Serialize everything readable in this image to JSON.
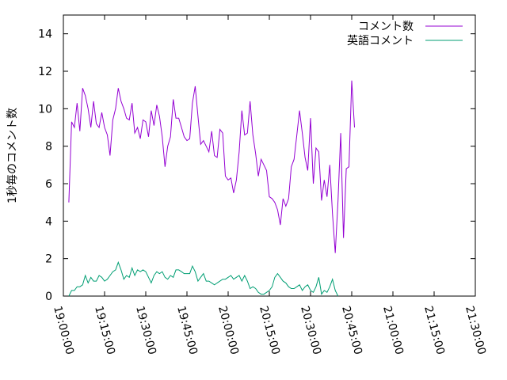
{
  "chart_data": {
    "type": "line",
    "title": "",
    "xlabel": "",
    "ylabel": "1秒毎のコメント数",
    "ylim": [
      0,
      15
    ],
    "yticks": [
      0,
      2,
      4,
      6,
      8,
      10,
      12,
      14
    ],
    "xlim": [
      "19:00:00",
      "21:30:00"
    ],
    "xticks": [
      "19:00:00",
      "19:15:00",
      "19:30:00",
      "19:45:00",
      "20:00:00",
      "20:15:00",
      "20:30:00",
      "20:45:00",
      "21:00:00",
      "21:15:00",
      "21:30:00"
    ],
    "grid": false,
    "legend_position": "top-right",
    "series": [
      {
        "name": "コメント数",
        "color": "#9400d3",
        "points": [
          [
            "19:02:00",
            5.0
          ],
          [
            "19:03:00",
            9.3
          ],
          [
            "19:04:00",
            9.0
          ],
          [
            "19:05:00",
            10.3
          ],
          [
            "19:06:00",
            8.8
          ],
          [
            "19:07:00",
            11.1
          ],
          [
            "19:08:00",
            10.7
          ],
          [
            "19:09:00",
            10.0
          ],
          [
            "19:10:00",
            9.0
          ],
          [
            "19:11:00",
            10.4
          ],
          [
            "19:12:00",
            9.2
          ],
          [
            "19:13:00",
            9.0
          ],
          [
            "19:14:00",
            9.8
          ],
          [
            "19:15:00",
            9.0
          ],
          [
            "19:16:00",
            8.6
          ],
          [
            "19:17:00",
            7.5
          ],
          [
            "19:18:00",
            9.4
          ],
          [
            "19:19:00",
            10.0
          ],
          [
            "19:20:00",
            11.1
          ],
          [
            "19:21:00",
            10.4
          ],
          [
            "19:22:00",
            10.0
          ],
          [
            "19:23:00",
            9.5
          ],
          [
            "19:24:00",
            9.4
          ],
          [
            "19:25:00",
            10.3
          ],
          [
            "19:26:00",
            8.7
          ],
          [
            "19:27:00",
            9.0
          ],
          [
            "19:28:00",
            8.4
          ],
          [
            "19:29:00",
            9.4
          ],
          [
            "19:30:00",
            9.3
          ],
          [
            "19:31:00",
            8.5
          ],
          [
            "19:32:00",
            9.9
          ],
          [
            "19:33:00",
            9.1
          ],
          [
            "19:34:00",
            10.2
          ],
          [
            "19:35:00",
            9.6
          ],
          [
            "19:36:00",
            8.5
          ],
          [
            "19:37:00",
            6.9
          ],
          [
            "19:38:00",
            8.0
          ],
          [
            "19:39:00",
            8.5
          ],
          [
            "19:40:00",
            10.5
          ],
          [
            "19:41:00",
            9.5
          ],
          [
            "19:42:00",
            9.5
          ],
          [
            "19:43:00",
            9.0
          ],
          [
            "19:44:00",
            8.5
          ],
          [
            "19:45:00",
            8.3
          ],
          [
            "19:46:00",
            8.4
          ],
          [
            "19:47:00",
            10.3
          ],
          [
            "19:48:00",
            11.2
          ],
          [
            "19:49:00",
            9.6
          ],
          [
            "19:50:00",
            8.1
          ],
          [
            "19:51:00",
            8.3
          ],
          [
            "19:52:00",
            8.0
          ],
          [
            "19:53:00",
            7.7
          ],
          [
            "19:54:00",
            8.8
          ],
          [
            "19:55:00",
            7.5
          ],
          [
            "19:56:00",
            7.4
          ],
          [
            "19:57:00",
            8.9
          ],
          [
            "19:58:00",
            8.7
          ],
          [
            "19:59:00",
            6.4
          ],
          [
            "20:00:00",
            6.2
          ],
          [
            "20:01:00",
            6.3
          ],
          [
            "20:02:00",
            5.5
          ],
          [
            "20:03:00",
            6.2
          ],
          [
            "20:04:00",
            7.7
          ],
          [
            "20:05:00",
            9.9
          ],
          [
            "20:06:00",
            8.6
          ],
          [
            "20:07:00",
            8.7
          ],
          [
            "20:08:00",
            10.4
          ],
          [
            "20:09:00",
            8.6
          ],
          [
            "20:10:00",
            7.6
          ],
          [
            "20:11:00",
            6.4
          ],
          [
            "20:12:00",
            7.3
          ],
          [
            "20:13:00",
            7.0
          ],
          [
            "20:14:00",
            6.7
          ],
          [
            "20:15:00",
            5.3
          ],
          [
            "20:16:00",
            5.2
          ],
          [
            "20:17:00",
            5.0
          ],
          [
            "20:18:00",
            4.6
          ],
          [
            "20:19:00",
            3.8
          ],
          [
            "20:20:00",
            5.2
          ],
          [
            "20:21:00",
            4.8
          ],
          [
            "20:22:00",
            5.2
          ],
          [
            "20:23:00",
            6.9
          ],
          [
            "20:24:00",
            7.3
          ],
          [
            "20:25:00",
            8.6
          ],
          [
            "20:26:00",
            9.9
          ],
          [
            "20:27:00",
            8.7
          ],
          [
            "20:28:00",
            7.4
          ],
          [
            "20:29:00",
            6.7
          ],
          [
            "20:30:00",
            9.5
          ],
          [
            "20:31:00",
            6.0
          ],
          [
            "20:32:00",
            7.9
          ],
          [
            "20:33:00",
            7.7
          ],
          [
            "20:34:00",
            5.1
          ],
          [
            "20:35:00",
            6.2
          ],
          [
            "20:36:00",
            5.3
          ],
          [
            "20:37:00",
            7.0
          ],
          [
            "20:38:00",
            4.4
          ],
          [
            "20:39:00",
            2.3
          ],
          [
            "20:40:00",
            5.1
          ],
          [
            "20:41:00",
            8.7
          ],
          [
            "20:42:00",
            3.1
          ],
          [
            "20:43:00",
            6.8
          ],
          [
            "20:44:00",
            6.9
          ],
          [
            "20:45:00",
            11.5
          ],
          [
            "20:46:00",
            9.0
          ]
        ]
      },
      {
        "name": "英語コメント",
        "color": "#009e73",
        "points": [
          [
            "19:02:00",
            0.0
          ],
          [
            "19:03:00",
            0.3
          ],
          [
            "19:04:00",
            0.3
          ],
          [
            "19:05:00",
            0.5
          ],
          [
            "19:06:00",
            0.5
          ],
          [
            "19:07:00",
            0.6
          ],
          [
            "19:08:00",
            1.1
          ],
          [
            "19:09:00",
            0.7
          ],
          [
            "19:10:00",
            1.0
          ],
          [
            "19:11:00",
            0.8
          ],
          [
            "19:12:00",
            0.8
          ],
          [
            "19:13:00",
            1.1
          ],
          [
            "19:14:00",
            1.0
          ],
          [
            "19:15:00",
            0.8
          ],
          [
            "19:16:00",
            0.9
          ],
          [
            "19:17:00",
            1.1
          ],
          [
            "19:18:00",
            1.3
          ],
          [
            "19:19:00",
            1.4
          ],
          [
            "19:20:00",
            1.8
          ],
          [
            "19:21:00",
            1.4
          ],
          [
            "19:22:00",
            0.9
          ],
          [
            "19:23:00",
            1.1
          ],
          [
            "19:24:00",
            1.0
          ],
          [
            "19:25:00",
            1.5
          ],
          [
            "19:26:00",
            1.1
          ],
          [
            "19:27:00",
            1.4
          ],
          [
            "19:28:00",
            1.3
          ],
          [
            "19:29:00",
            1.4
          ],
          [
            "19:30:00",
            1.3
          ],
          [
            "19:31:00",
            1.0
          ],
          [
            "19:32:00",
            0.7
          ],
          [
            "19:33:00",
            1.1
          ],
          [
            "19:34:00",
            1.3
          ],
          [
            "19:35:00",
            1.2
          ],
          [
            "19:36:00",
            1.3
          ],
          [
            "19:37:00",
            1.0
          ],
          [
            "19:38:00",
            0.9
          ],
          [
            "19:39:00",
            1.1
          ],
          [
            "19:40:00",
            1.0
          ],
          [
            "19:41:00",
            1.4
          ],
          [
            "19:42:00",
            1.4
          ],
          [
            "19:43:00",
            1.3
          ],
          [
            "19:44:00",
            1.2
          ],
          [
            "19:45:00",
            1.2
          ],
          [
            "19:46:00",
            1.2
          ],
          [
            "19:47:00",
            1.6
          ],
          [
            "19:48:00",
            1.3
          ],
          [
            "19:49:00",
            0.8
          ],
          [
            "19:50:00",
            1.0
          ],
          [
            "19:51:00",
            1.2
          ],
          [
            "19:52:00",
            0.8
          ],
          [
            "19:53:00",
            0.8
          ],
          [
            "19:54:00",
            0.7
          ],
          [
            "19:55:00",
            0.6
          ],
          [
            "19:56:00",
            0.7
          ],
          [
            "19:57:00",
            0.8
          ],
          [
            "19:58:00",
            0.9
          ],
          [
            "19:59:00",
            0.9
          ],
          [
            "20:00:00",
            1.0
          ],
          [
            "20:01:00",
            1.1
          ],
          [
            "20:02:00",
            0.9
          ],
          [
            "20:03:00",
            1.0
          ],
          [
            "20:04:00",
            1.1
          ],
          [
            "20:05:00",
            0.8
          ],
          [
            "20:06:00",
            1.1
          ],
          [
            "20:07:00",
            0.8
          ],
          [
            "20:08:00",
            0.4
          ],
          [
            "20:09:00",
            0.5
          ],
          [
            "20:10:00",
            0.4
          ],
          [
            "20:11:00",
            0.2
          ],
          [
            "20:12:00",
            0.1
          ],
          [
            "20:13:00",
            0.1
          ],
          [
            "20:14:00",
            0.2
          ],
          [
            "20:15:00",
            0.3
          ],
          [
            "20:16:00",
            0.5
          ],
          [
            "20:17:00",
            1.0
          ],
          [
            "20:18:00",
            1.2
          ],
          [
            "20:19:00",
            1.0
          ],
          [
            "20:20:00",
            0.8
          ],
          [
            "20:21:00",
            0.7
          ],
          [
            "20:22:00",
            0.5
          ],
          [
            "20:23:00",
            0.4
          ],
          [
            "20:24:00",
            0.4
          ],
          [
            "20:25:00",
            0.5
          ],
          [
            "20:26:00",
            0.6
          ],
          [
            "20:27:00",
            0.3
          ],
          [
            "20:28:00",
            0.5
          ],
          [
            "20:29:00",
            0.6
          ],
          [
            "20:30:00",
            0.3
          ],
          [
            "20:31:00",
            0.2
          ],
          [
            "20:32:00",
            0.5
          ],
          [
            "20:33:00",
            1.0
          ],
          [
            "20:34:00",
            0.1
          ],
          [
            "20:35:00",
            0.3
          ],
          [
            "20:36:00",
            0.2
          ],
          [
            "20:37:00",
            0.5
          ],
          [
            "20:38:00",
            0.9
          ],
          [
            "20:39:00",
            0.3
          ],
          [
            "20:40:00",
            0.0
          ]
        ]
      }
    ]
  }
}
